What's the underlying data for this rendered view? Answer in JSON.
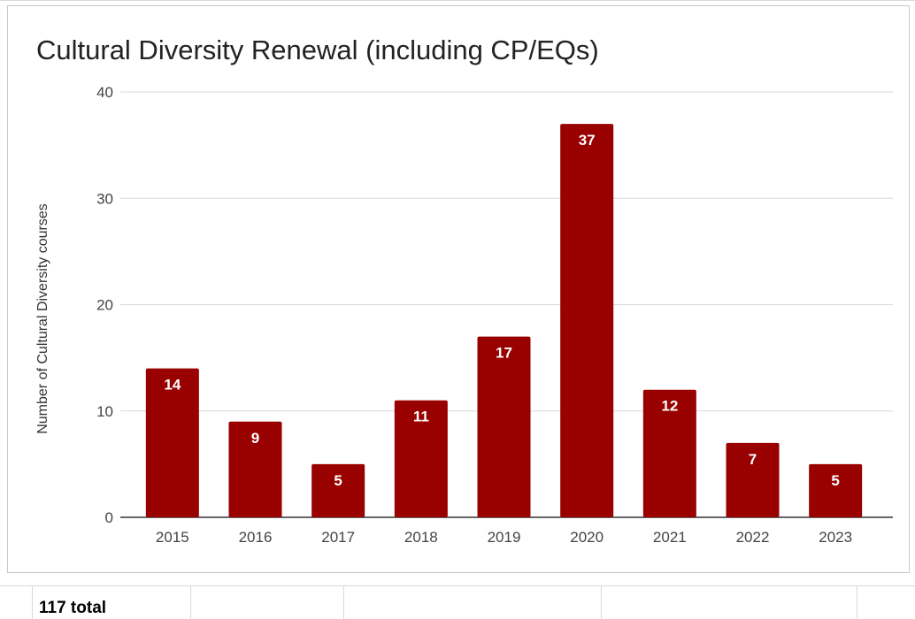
{
  "chart_data": {
    "type": "bar",
    "title": "Cultural Diversity Renewal (including CP/EQs)",
    "xlabel": "",
    "ylabel": "Number of Cultural Diversity courses",
    "categories": [
      "2015",
      "2016",
      "2017",
      "2018",
      "2019",
      "2020",
      "2021",
      "2022",
      "2023"
    ],
    "values": [
      14,
      9,
      5,
      11,
      17,
      37,
      12,
      7,
      5
    ],
    "ylim": [
      0,
      40
    ],
    "yticks": [
      0,
      10,
      20,
      30,
      40
    ],
    "grid": true,
    "legend": "none",
    "data_labels": true,
    "bar_color": "#990000",
    "label_color": "#ffffff"
  },
  "sheet": {
    "total_cell": "117 total"
  }
}
